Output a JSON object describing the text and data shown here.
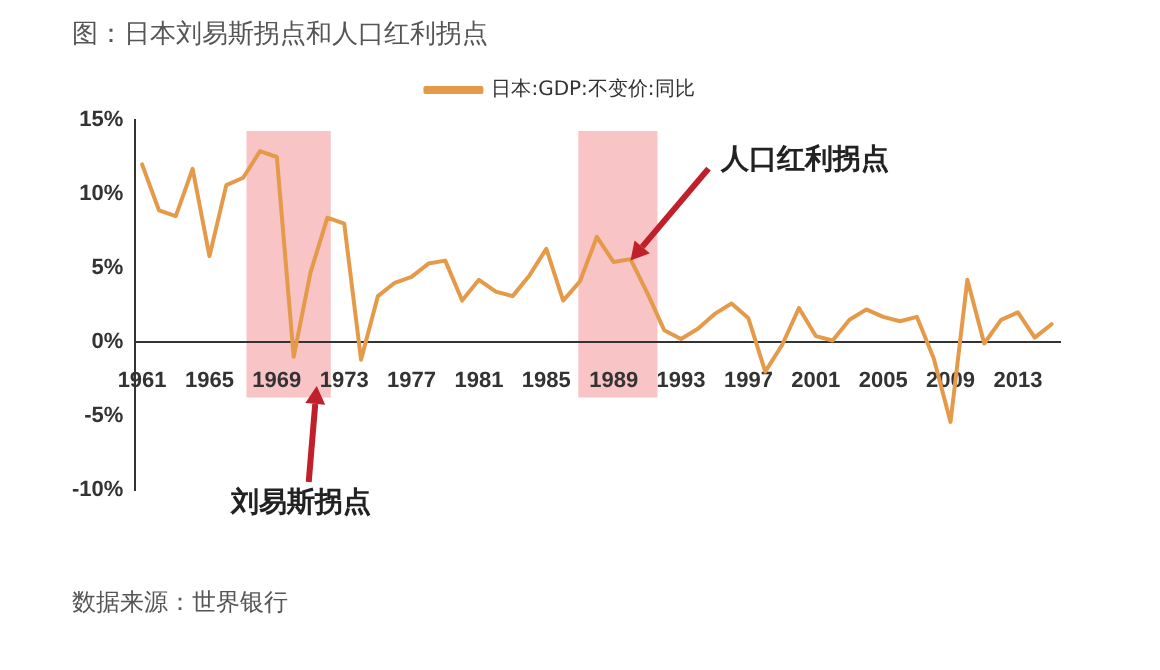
{
  "chart_data": {
    "type": "line",
    "title": "图：日本刘易斯拐点和人口红利拐点",
    "x": [
      1961,
      1962,
      1963,
      1964,
      1965,
      1966,
      1967,
      1968,
      1969,
      1970,
      1971,
      1972,
      1973,
      1974,
      1975,
      1976,
      1977,
      1978,
      1979,
      1980,
      1981,
      1982,
      1983,
      1984,
      1985,
      1986,
      1987,
      1988,
      1989,
      1990,
      1991,
      1992,
      1993,
      1994,
      1995,
      1996,
      1997,
      1998,
      1999,
      2000,
      2001,
      2002,
      2003,
      2004,
      2005,
      2006,
      2007,
      2008,
      2009,
      2010,
      2011,
      2012,
      2013,
      2014,
      2015
    ],
    "series": [
      {
        "name": "日本:GDP:不变价:同比",
        "color": "#e59a4a",
        "values": [
          12.0,
          8.9,
          8.5,
          11.7,
          5.8,
          10.6,
          11.1,
          12.9,
          12.5,
          -1.0,
          4.7,
          8.4,
          8.0,
          -1.2,
          3.1,
          4.0,
          4.4,
          5.3,
          5.5,
          2.8,
          4.2,
          3.4,
          3.1,
          4.5,
          6.3,
          2.8,
          4.1,
          7.1,
          5.4,
          5.6,
          3.3,
          0.8,
          0.2,
          0.9,
          1.9,
          2.6,
          1.6,
          -2.0,
          -0.2,
          2.3,
          0.4,
          0.1,
          1.5,
          2.2,
          1.7,
          1.4,
          1.7,
          -1.1,
          -5.4,
          4.2,
          -0.1,
          1.5,
          2.0,
          0.3,
          1.2
        ]
      }
    ],
    "xlim": [
      1960.6,
      2015.5
    ],
    "xticks": [
      1961,
      1965,
      1969,
      1973,
      1977,
      1981,
      1985,
      1989,
      1993,
      1997,
      2001,
      2005,
      2009,
      2013
    ],
    "ylim": [
      -10,
      15
    ],
    "yticks": [
      {
        "value": -10,
        "label": "-10%"
      },
      {
        "value": -5,
        "label": "-5%"
      },
      {
        "value": 0,
        "label": "0%"
      },
      {
        "value": 5,
        "label": "5%"
      },
      {
        "value": 10,
        "label": "10%"
      },
      {
        "value": 15,
        "label": "15%"
      }
    ],
    "bands": [
      {
        "axis": "x",
        "from": 1967.2,
        "to": 1972.2,
        "color": "#f9c4c6"
      },
      {
        "axis": "x",
        "from": 1986.9,
        "to": 1991.6,
        "color": "#f9c4c6"
      }
    ],
    "annotations": [
      "刘易斯拐点",
      {
        "text": "人口红利拐点",
        "x": 1990,
        "y": 5.5
      },
      "数据来源：世界银行"
    ],
    "grid": false,
    "legend": "top",
    "marker": "none",
    "line_style": "solid"
  }
}
